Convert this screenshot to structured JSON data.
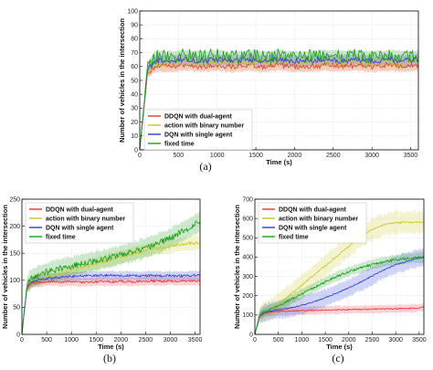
{
  "chart_data": [
    {
      "id": "a",
      "type": "line",
      "caption": "(a)",
      "xlabel": "Time (s)",
      "ylabel": "Number of vehicles in the intersection",
      "xlim": [
        0,
        3600
      ],
      "ylim": [
        0,
        100
      ],
      "xticks": [
        0,
        500,
        1000,
        1500,
        2000,
        2500,
        3000,
        3500
      ],
      "yticks": [
        0,
        10,
        20,
        30,
        40,
        50,
        60,
        70,
        80,
        90,
        100
      ],
      "legend_position": "lower-left",
      "x": [
        0,
        100,
        200,
        400,
        600,
        800,
        1000,
        1200,
        1400,
        1600,
        1800,
        2000,
        2200,
        2400,
        2600,
        2800,
        3000,
        3200,
        3400,
        3600
      ],
      "series": [
        {
          "name": "DDQN with dual-agent",
          "color": "#e8313a",
          "values": [
            0,
            55,
            60,
            60,
            61,
            60,
            61,
            60,
            61,
            60,
            61,
            60,
            60,
            61,
            60,
            61,
            60,
            61,
            60,
            61
          ],
          "band": 4,
          "noise": 2
        },
        {
          "name": "action with binary number",
          "color": "#c8c82a",
          "values": [
            0,
            56,
            62,
            62,
            63,
            62,
            63,
            62,
            63,
            62,
            63,
            62,
            62,
            63,
            62,
            63,
            62,
            63,
            62,
            63
          ],
          "band": 5,
          "noise": 2
        },
        {
          "name": "DQN with single agent",
          "color": "#2b3ad8",
          "values": [
            0,
            58,
            64,
            64,
            65,
            64,
            65,
            64,
            65,
            64,
            65,
            64,
            64,
            65,
            64,
            65,
            64,
            65,
            64,
            65
          ],
          "band": 4,
          "noise": 2
        },
        {
          "name": "fixed time",
          "color": "#1a9c1a",
          "values": [
            0,
            60,
            67,
            67,
            68,
            67,
            68,
            67,
            68,
            67,
            68,
            67,
            67,
            68,
            67,
            68,
            67,
            68,
            67,
            68
          ],
          "band": 4,
          "noise": 5
        }
      ]
    },
    {
      "id": "b",
      "type": "line",
      "caption": "(b)",
      "xlabel": "Time (s)",
      "ylabel": "Number of vehicles in the intersection",
      "xlim": [
        0,
        3600
      ],
      "ylim": [
        0,
        250
      ],
      "xticks": [
        0,
        500,
        1000,
        1500,
        2000,
        2500,
        3000,
        3500
      ],
      "yticks": [
        0,
        50,
        100,
        150,
        200,
        250
      ],
      "legend_position": "upper-left",
      "x": [
        0,
        100,
        200,
        400,
        600,
        800,
        1000,
        1200,
        1400,
        1600,
        1800,
        2000,
        2200,
        2400,
        2600,
        2800,
        3000,
        3200,
        3400,
        3600
      ],
      "series": [
        {
          "name": "DDQN with dual-agent",
          "color": "#e8313a",
          "values": [
            0,
            85,
            95,
            97,
            98,
            97,
            98,
            96,
            97,
            98,
            97,
            98,
            97,
            98,
            99,
            98,
            99,
            98,
            99,
            99
          ],
          "band": 8,
          "noise": 2
        },
        {
          "name": "action with binary number",
          "color": "#c8c82a",
          "values": [
            0,
            88,
            98,
            103,
            108,
            112,
            118,
            123,
            128,
            133,
            138,
            143,
            148,
            153,
            157,
            160,
            163,
            166,
            168,
            170
          ],
          "band": 12,
          "noise": 3
        },
        {
          "name": "DQN with single agent",
          "color": "#2b3ad8",
          "values": [
            0,
            88,
            98,
            102,
            104,
            106,
            107,
            108,
            108,
            109,
            109,
            108,
            109,
            108,
            109,
            108,
            109,
            108,
            109,
            109
          ],
          "band": 8,
          "noise": 2
        },
        {
          "name": "fixed time",
          "color": "#1a9c1a",
          "values": [
            0,
            92,
            103,
            112,
            118,
            122,
            126,
            130,
            134,
            138,
            142,
            147,
            152,
            157,
            163,
            170,
            178,
            188,
            198,
            208
          ],
          "band": 18,
          "noise": 6
        }
      ]
    },
    {
      "id": "c",
      "type": "line",
      "caption": "(c)",
      "xlabel": "Time (s)",
      "ylabel": "Number of vehicles in the intersection",
      "xlim": [
        0,
        3600
      ],
      "ylim": [
        0,
        700
      ],
      "xticks": [
        0,
        500,
        1000,
        1500,
        2000,
        2500,
        3000,
        3500
      ],
      "yticks": [
        0,
        100,
        200,
        300,
        400,
        500,
        600,
        700
      ],
      "legend_position": "upper-left",
      "x": [
        0,
        100,
        200,
        400,
        600,
        800,
        1000,
        1200,
        1400,
        1600,
        1800,
        2000,
        2200,
        2400,
        2600,
        2800,
        3000,
        3200,
        3400,
        3600
      ],
      "series": [
        {
          "name": "DDQN with dual-agent",
          "color": "#e8313a",
          "values": [
            0,
            95,
            110,
            118,
            120,
            122,
            123,
            124,
            125,
            126,
            127,
            128,
            129,
            130,
            131,
            132,
            133,
            134,
            135,
            140
          ],
          "band": 20,
          "noise": 3
        },
        {
          "name": "action with binary number",
          "color": "#c8c82a",
          "values": [
            0,
            97,
            115,
            140,
            175,
            215,
            255,
            295,
            335,
            375,
            415,
            455,
            495,
            530,
            555,
            570,
            578,
            580,
            580,
            580
          ],
          "band": 55,
          "noise": 4
        },
        {
          "name": "DQN with single agent",
          "color": "#2b3ad8",
          "values": [
            0,
            96,
            112,
            125,
            130,
            140,
            150,
            165,
            180,
            200,
            220,
            240,
            265,
            290,
            315,
            340,
            360,
            375,
            390,
            400
          ],
          "band": 45,
          "noise": 3
        },
        {
          "name": "fixed time",
          "color": "#1a9c1a",
          "values": [
            0,
            98,
            118,
            135,
            160,
            185,
            210,
            235,
            260,
            285,
            305,
            325,
            340,
            355,
            368,
            378,
            386,
            392,
            396,
            398
          ],
          "band": 25,
          "noise": 6
        }
      ]
    }
  ]
}
